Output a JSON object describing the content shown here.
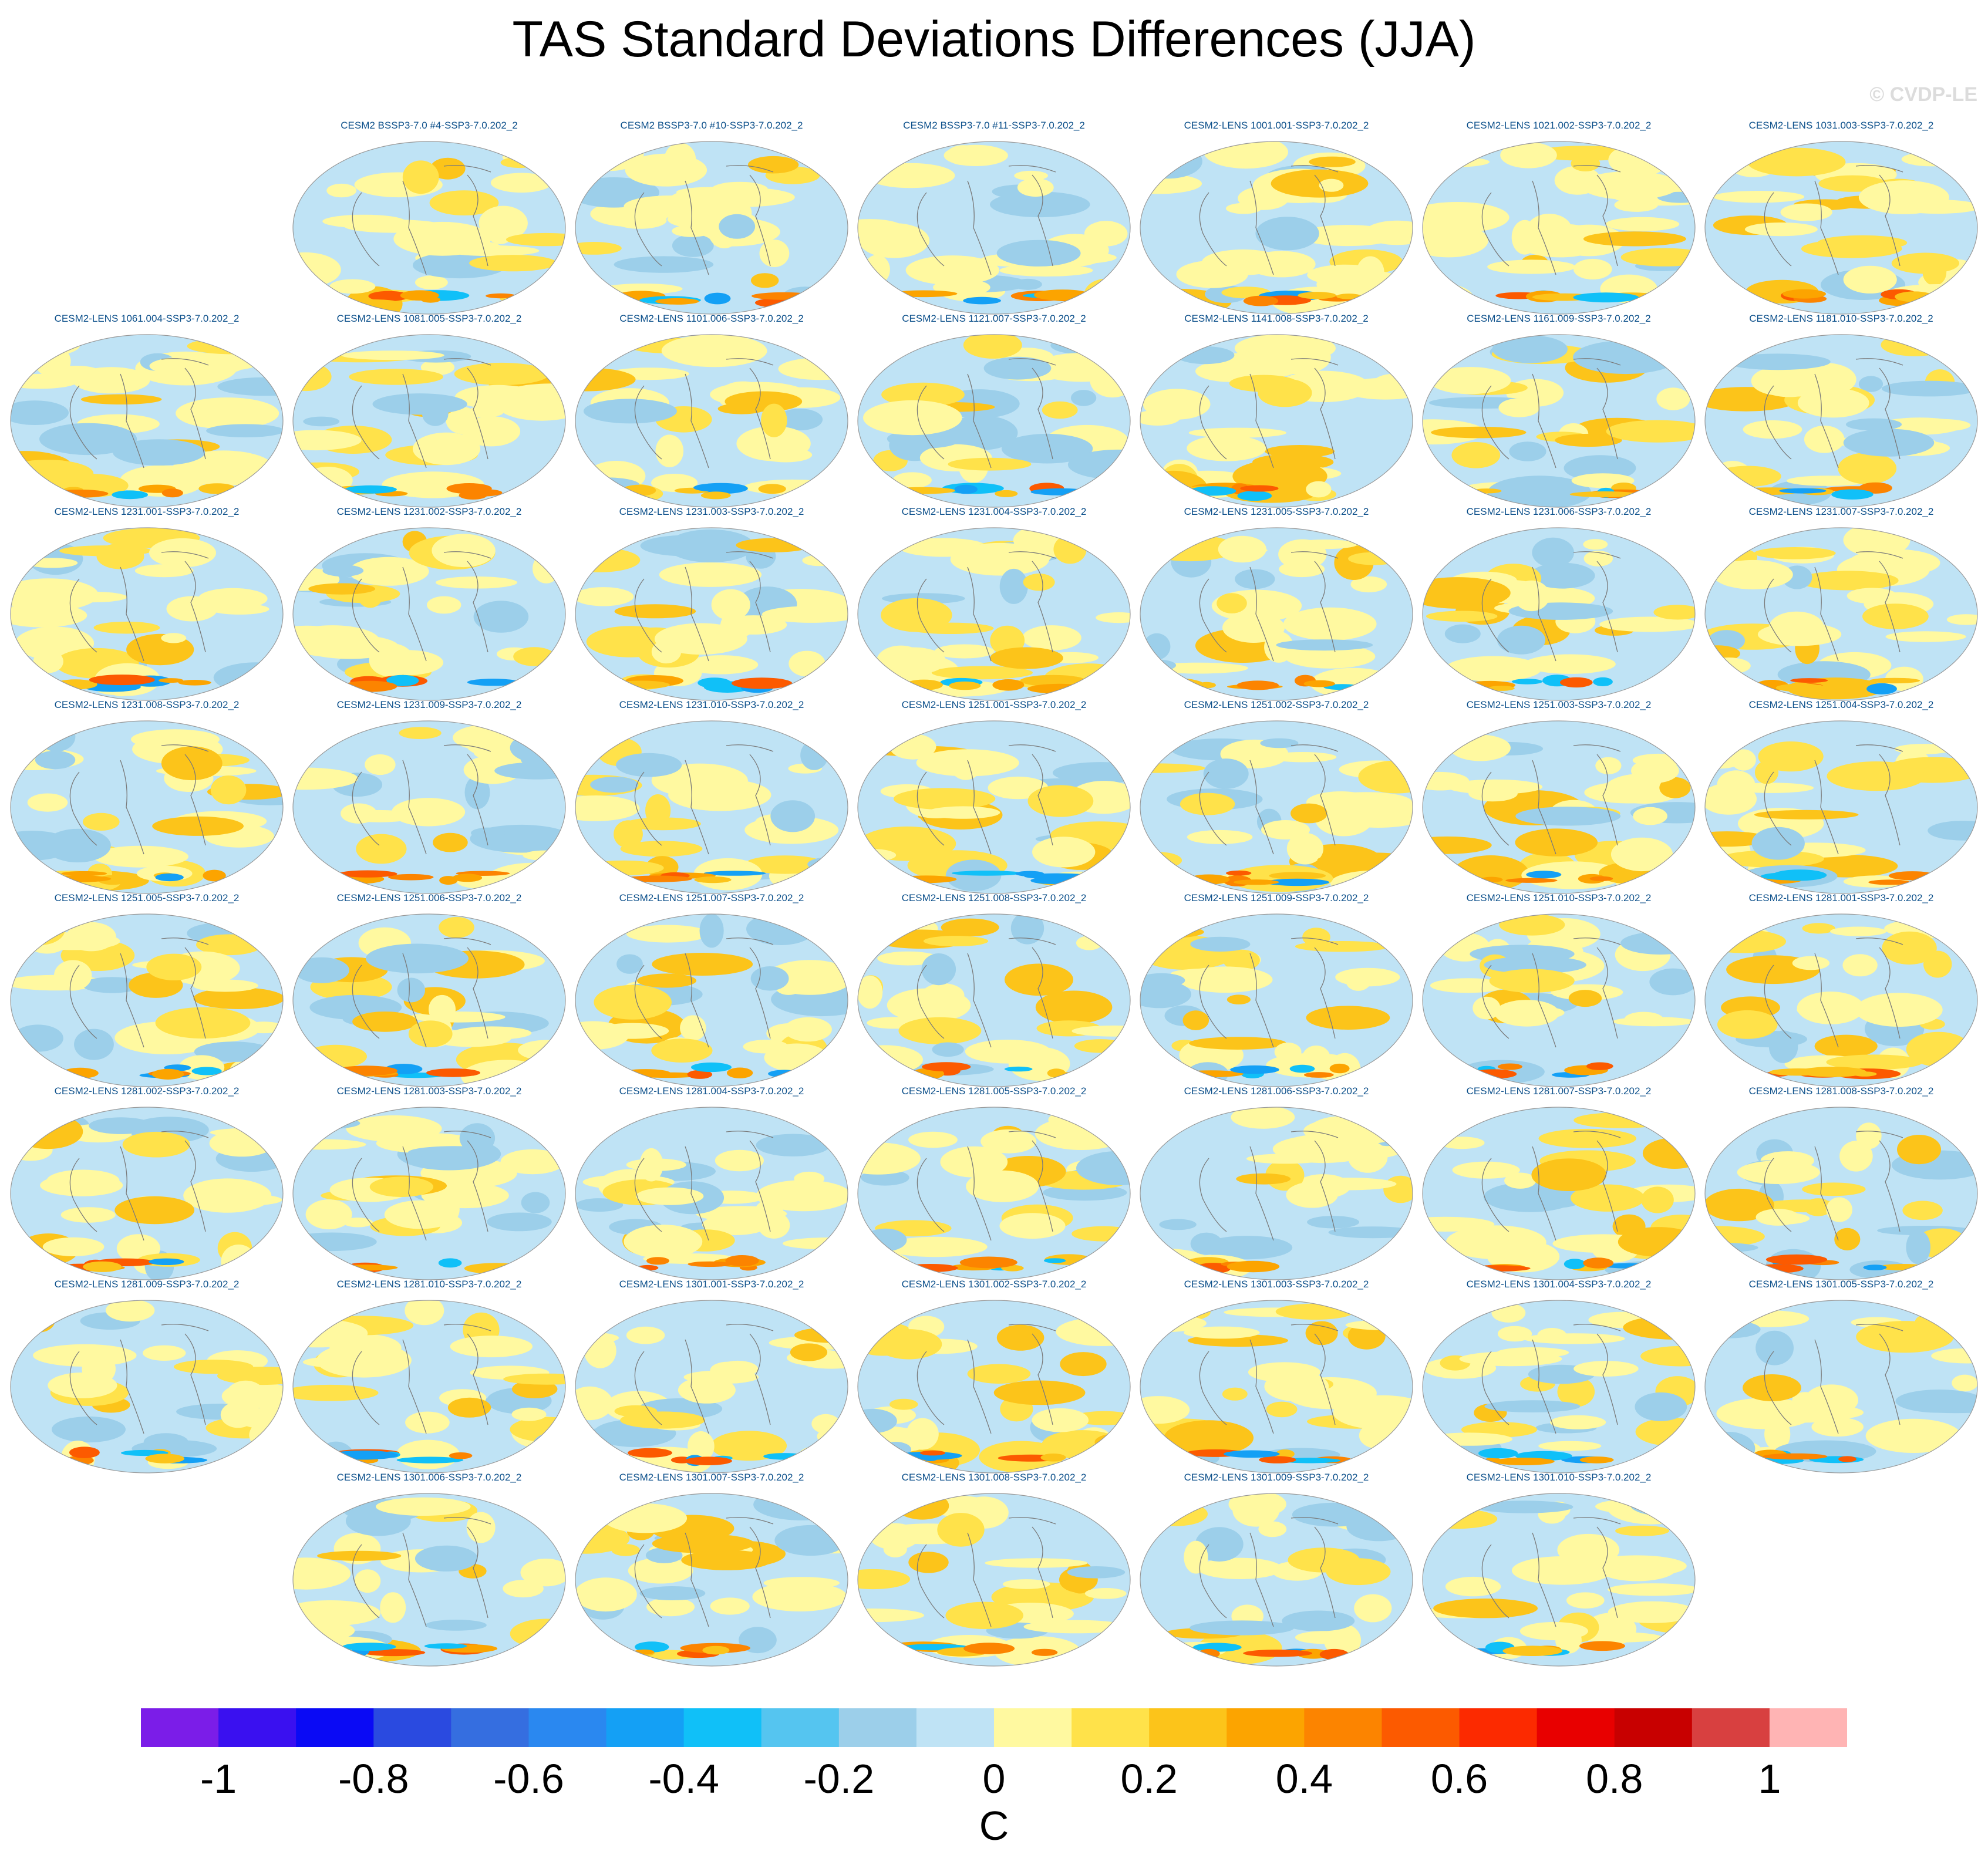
{
  "title": "TAS Standard Deviations Differences (JJA)",
  "watermark": "© CVDP-LE",
  "chart_data": {
    "type": "heatmap",
    "projection": "Robinson (global maps)",
    "variable": "TAS",
    "season": "JJA",
    "units": "C",
    "color_scale": {
      "levels": [
        -1.1,
        -1.0,
        -0.9,
        -0.8,
        -0.7,
        -0.6,
        -0.5,
        -0.4,
        -0.3,
        -0.2,
        -0.1,
        0,
        0.1,
        0.2,
        0.3,
        0.4,
        0.5,
        0.6,
        0.7,
        0.8,
        0.9,
        1.0,
        1.1
      ],
      "colors": [
        "#7b1de8",
        "#3a10f0",
        "#0a0af5",
        "#2a4ae0",
        "#356ee0",
        "#2a88f0",
        "#14a0f5",
        "#10c0f8",
        "#55c5f0",
        "#9ccfea",
        "#bfe3f5",
        "#fff9a0",
        "#ffe24a",
        "#fcc41a",
        "#fca400",
        "#fc8400",
        "#fc5a00",
        "#fc2a00",
        "#e80000",
        "#c80000",
        "#d84040",
        "#ffb4b4"
      ],
      "tick_labels": [
        "-1",
        "-0.8",
        "-0.6",
        "-0.4",
        "-0.2",
        "0",
        "0.2",
        "0.4",
        "0.6",
        "0.8",
        "1"
      ],
      "tick_values": [
        -1,
        -0.8,
        -0.6,
        -0.4,
        -0.2,
        0,
        0.2,
        0.4,
        0.6,
        0.8,
        1
      ],
      "label": "C"
    },
    "panels": [
      {
        "label": "CESM2 BSSP3-7.0 #4-SSP3-7.0.202_2",
        "row": 0,
        "col": 1
      },
      {
        "label": "CESM2 BSSP3-7.0 #10-SSP3-7.0.202_2",
        "row": 0,
        "col": 2
      },
      {
        "label": "CESM2 BSSP3-7.0 #11-SSP3-7.0.202_2",
        "row": 0,
        "col": 3
      },
      {
        "label": "CESM2-LENS 1001.001-SSP3-7.0.202_2",
        "row": 0,
        "col": 4
      },
      {
        "label": "CESM2-LENS 1021.002-SSP3-7.0.202_2",
        "row": 0,
        "col": 5
      },
      {
        "label": "CESM2-LENS 1031.003-SSP3-7.0.202_2",
        "row": 0,
        "col": 6
      },
      {
        "label": "CESM2-LENS 1061.004-SSP3-7.0.202_2",
        "row": 1,
        "col": 0
      },
      {
        "label": "CESM2-LENS 1081.005-SSP3-7.0.202_2",
        "row": 1,
        "col": 1
      },
      {
        "label": "CESM2-LENS 1101.006-SSP3-7.0.202_2",
        "row": 1,
        "col": 2
      },
      {
        "label": "CESM2-LENS 1121.007-SSP3-7.0.202_2",
        "row": 1,
        "col": 3
      },
      {
        "label": "CESM2-LENS 1141.008-SSP3-7.0.202_2",
        "row": 1,
        "col": 4
      },
      {
        "label": "CESM2-LENS 1161.009-SSP3-7.0.202_2",
        "row": 1,
        "col": 5
      },
      {
        "label": "CESM2-LENS 1181.010-SSP3-7.0.202_2",
        "row": 1,
        "col": 6
      },
      {
        "label": "CESM2-LENS 1231.001-SSP3-7.0.202_2",
        "row": 2,
        "col": 0
      },
      {
        "label": "CESM2-LENS 1231.002-SSP3-7.0.202_2",
        "row": 2,
        "col": 1
      },
      {
        "label": "CESM2-LENS 1231.003-SSP3-7.0.202_2",
        "row": 2,
        "col": 2
      },
      {
        "label": "CESM2-LENS 1231.004-SSP3-7.0.202_2",
        "row": 2,
        "col": 3
      },
      {
        "label": "CESM2-LENS 1231.005-SSP3-7.0.202_2",
        "row": 2,
        "col": 4
      },
      {
        "label": "CESM2-LENS 1231.006-SSP3-7.0.202_2",
        "row": 2,
        "col": 5
      },
      {
        "label": "CESM2-LENS 1231.007-SSP3-7.0.202_2",
        "row": 2,
        "col": 6
      },
      {
        "label": "CESM2-LENS 1231.008-SSP3-7.0.202_2",
        "row": 3,
        "col": 0
      },
      {
        "label": "CESM2-LENS 1231.009-SSP3-7.0.202_2",
        "row": 3,
        "col": 1
      },
      {
        "label": "CESM2-LENS 1231.010-SSP3-7.0.202_2",
        "row": 3,
        "col": 2
      },
      {
        "label": "CESM2-LENS 1251.001-SSP3-7.0.202_2",
        "row": 3,
        "col": 3
      },
      {
        "label": "CESM2-LENS 1251.002-SSP3-7.0.202_2",
        "row": 3,
        "col": 4
      },
      {
        "label": "CESM2-LENS 1251.003-SSP3-7.0.202_2",
        "row": 3,
        "col": 5
      },
      {
        "label": "CESM2-LENS 1251.004-SSP3-7.0.202_2",
        "row": 3,
        "col": 6
      },
      {
        "label": "CESM2-LENS 1251.005-SSP3-7.0.202_2",
        "row": 4,
        "col": 0
      },
      {
        "label": "CESM2-LENS 1251.006-SSP3-7.0.202_2",
        "row": 4,
        "col": 1
      },
      {
        "label": "CESM2-LENS 1251.007-SSP3-7.0.202_2",
        "row": 4,
        "col": 2
      },
      {
        "label": "CESM2-LENS 1251.008-SSP3-7.0.202_2",
        "row": 4,
        "col": 3
      },
      {
        "label": "CESM2-LENS 1251.009-SSP3-7.0.202_2",
        "row": 4,
        "col": 4
      },
      {
        "label": "CESM2-LENS 1251.010-SSP3-7.0.202_2",
        "row": 4,
        "col": 5
      },
      {
        "label": "CESM2-LENS 1281.001-SSP3-7.0.202_2",
        "row": 4,
        "col": 6
      },
      {
        "label": "CESM2-LENS 1281.002-SSP3-7.0.202_2",
        "row": 5,
        "col": 0
      },
      {
        "label": "CESM2-LENS 1281.003-SSP3-7.0.202_2",
        "row": 5,
        "col": 1
      },
      {
        "label": "CESM2-LENS 1281.004-SSP3-7.0.202_2",
        "row": 5,
        "col": 2
      },
      {
        "label": "CESM2-LENS 1281.005-SSP3-7.0.202_2",
        "row": 5,
        "col": 3
      },
      {
        "label": "CESM2-LENS 1281.006-SSP3-7.0.202_2",
        "row": 5,
        "col": 4
      },
      {
        "label": "CESM2-LENS 1281.007-SSP3-7.0.202_2",
        "row": 5,
        "col": 5
      },
      {
        "label": "CESM2-LENS 1281.008-SSP3-7.0.202_2",
        "row": 5,
        "col": 6
      },
      {
        "label": "CESM2-LENS 1281.009-SSP3-7.0.202_2",
        "row": 6,
        "col": 0
      },
      {
        "label": "CESM2-LENS 1281.010-SSP3-7.0.202_2",
        "row": 6,
        "col": 1
      },
      {
        "label": "CESM2-LENS 1301.001-SSP3-7.0.202_2",
        "row": 6,
        "col": 2
      },
      {
        "label": "CESM2-LENS 1301.002-SSP3-7.0.202_2",
        "row": 6,
        "col": 3
      },
      {
        "label": "CESM2-LENS 1301.003-SSP3-7.0.202_2",
        "row": 6,
        "col": 4
      },
      {
        "label": "CESM2-LENS 1301.004-SSP3-7.0.202_2",
        "row": 6,
        "col": 5
      },
      {
        "label": "CESM2-LENS 1301.005-SSP3-7.0.202_2",
        "row": 6,
        "col": 6
      },
      {
        "label": "CESM2-LENS 1301.006-SSP3-7.0.202_2",
        "row": 7,
        "col": 1
      },
      {
        "label": "CESM2-LENS 1301.007-SSP3-7.0.202_2",
        "row": 7,
        "col": 2
      },
      {
        "label": "CESM2-LENS 1301.008-SSP3-7.0.202_2",
        "row": 7,
        "col": 3
      },
      {
        "label": "CESM2-LENS 1301.009-SSP3-7.0.202_2",
        "row": 7,
        "col": 4
      },
      {
        "label": "CESM2-LENS 1301.010-SSP3-7.0.202_2",
        "row": 7,
        "col": 5
      }
    ]
  }
}
